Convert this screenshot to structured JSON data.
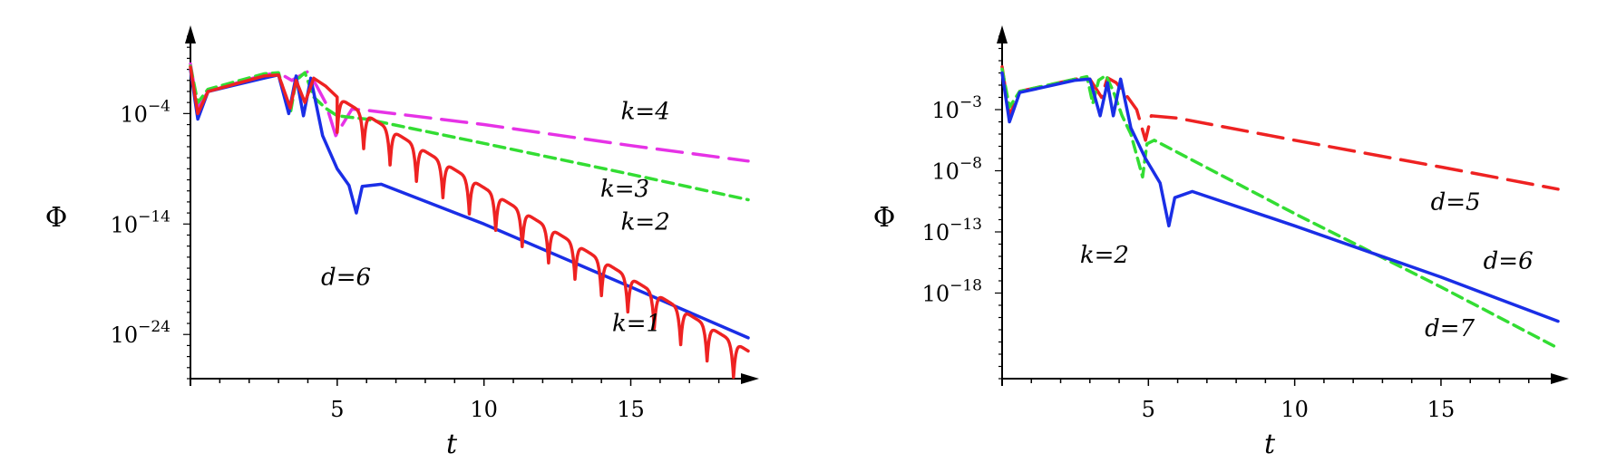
{
  "chart_data": [
    {
      "type": "line",
      "xlabel": "t",
      "ylabel": "Φ",
      "x_scale": "linear",
      "y_scale": "log",
      "xlim": [
        0,
        19
      ],
      "ylim_log10": [
        -28,
        3
      ],
      "xticks": [
        5,
        10,
        15
      ],
      "yticks": [
        {
          "exp": -4,
          "label": "10"
        },
        {
          "exp": -14,
          "label": "10"
        },
        {
          "exp": -24,
          "label": "10"
        }
      ],
      "ytick_exponents": [
        "−4",
        "−14",
        "−24"
      ],
      "annotations": [
        {
          "text": "k=4",
          "x": 15.5,
          "y_exp": -4.5
        },
        {
          "text": "k=3",
          "x": 14.8,
          "y_exp": -11.5
        },
        {
          "text": "k=2",
          "x": 15.5,
          "y_exp": -14.5
        },
        {
          "text": "d=6",
          "x": 5.3,
          "y_exp": -19.5
        },
        {
          "text": "k=1",
          "x": 15.2,
          "y_exp": -23.7
        }
      ],
      "series": [
        {
          "name": "k=4",
          "color": "#e632e6",
          "dash": "long",
          "x": [
            0,
            0.25,
            0.6,
            2.5,
            3.0,
            3.45,
            3.65,
            4.0,
            4.3,
            4.6,
            4.95,
            5.5,
            6,
            10,
            15,
            19
          ],
          "y_exp": [
            0.5,
            -3.5,
            -2.0,
            -0.5,
            -0.3,
            -1.0,
            -0.7,
            -0.2,
            -1.5,
            -3.0,
            -6.0,
            -3.6,
            -3.7,
            -5.0,
            -6.9,
            -8.3
          ]
        },
        {
          "name": "k=3",
          "color": "#33dd33",
          "dash": "short",
          "x": [
            0,
            0.25,
            0.6,
            2.5,
            3.0,
            3.4,
            3.6,
            3.9,
            4.2,
            4.6,
            5.0,
            6,
            10,
            15,
            19
          ],
          "y_exp": [
            0.3,
            -3.0,
            -1.8,
            -0.4,
            -0.3,
            -4.0,
            -1.0,
            -0.3,
            -2.5,
            -3.5,
            -4.2,
            -4.5,
            -6.7,
            -9.5,
            -11.8
          ]
        },
        {
          "name": "k=2",
          "color": "#1a2ee6",
          "dash": "solid",
          "x": [
            0,
            0.25,
            0.6,
            2.5,
            3.0,
            3.35,
            3.6,
            3.85,
            4.1,
            4.5,
            5.0,
            5.4,
            5.65,
            5.85,
            6.5,
            10,
            15,
            19
          ],
          "y_exp": [
            0,
            -4.5,
            -2.0,
            -0.8,
            -0.5,
            -4.0,
            -0.6,
            -4.2,
            -0.8,
            -6.0,
            -9.0,
            -10.5,
            -13.0,
            -10.6,
            -10.4,
            -14.0,
            -19.7,
            -24.3
          ]
        },
        {
          "name": "k=1",
          "color": "#ee2222",
          "dash": "solid",
          "envelope_y_exp": [
            -4.0,
            -27.0
          ],
          "x": [
            0,
            19
          ]
        }
      ]
    },
    {
      "type": "line",
      "xlabel": "t",
      "ylabel": "Φ",
      "x_scale": "linear",
      "y_scale": "log",
      "xlim": [
        0,
        19
      ],
      "ylim_log10": [
        -25,
        3
      ],
      "xticks": [
        5,
        10,
        15
      ],
      "yticks": [
        {
          "exp": -3,
          "label": "10"
        },
        {
          "exp": -8,
          "label": "10"
        },
        {
          "exp": -13,
          "label": "10"
        },
        {
          "exp": -18,
          "label": "10"
        }
      ],
      "ytick_exponents": [
        "−3",
        "−8",
        "−13",
        "−18"
      ],
      "annotations": [
        {
          "text": "d=5",
          "x": 15.5,
          "y_exp": -11.2
        },
        {
          "text": "k=2",
          "x": 3.5,
          "y_exp": -15.5
        },
        {
          "text": "d=6",
          "x": 17.3,
          "y_exp": -16.0
        },
        {
          "text": "d=7",
          "x": 15.3,
          "y_exp": -21.5
        }
      ],
      "series": [
        {
          "name": "d=5",
          "color": "#ee2222",
          "dash": "long",
          "x": [
            0,
            0.25,
            0.6,
            2.5,
            3.0,
            3.4,
            3.6,
            3.9,
            4.3,
            4.6,
            4.9,
            5.1,
            6,
            10,
            15,
            19
          ],
          "y_exp": [
            0.5,
            -3.5,
            -1.5,
            -0.5,
            -0.5,
            -2.0,
            -0.4,
            -0.8,
            -2.0,
            -3.0,
            -5.5,
            -3.5,
            -3.7,
            -5.5,
            -7.7,
            -9.5
          ]
        },
        {
          "name": "d=7",
          "color": "#33dd33",
          "dash": "short",
          "x": [
            0,
            0.25,
            0.6,
            2.5,
            2.9,
            3.1,
            3.3,
            3.55,
            3.8,
            4.1,
            4.4,
            4.8,
            4.95,
            5.2,
            6,
            10,
            15,
            19
          ],
          "y_exp": [
            0.3,
            -2.8,
            -1.5,
            -0.5,
            -0.3,
            -2.5,
            -0.6,
            -0.2,
            -1.5,
            -3.5,
            -5.0,
            -8.5,
            -5.8,
            -5.5,
            -6.5,
            -11.5,
            -17.5,
            -22.5
          ]
        },
        {
          "name": "d=6",
          "color": "#1a2ee6",
          "dash": "solid",
          "x": [
            0,
            0.25,
            0.6,
            2.5,
            3.0,
            3.35,
            3.6,
            3.8,
            4.05,
            4.4,
            4.9,
            5.4,
            5.7,
            5.9,
            6.5,
            10,
            15,
            19
          ],
          "y_exp": [
            0,
            -4.0,
            -1.6,
            -0.6,
            -0.5,
            -3.5,
            -0.8,
            -3.5,
            -0.5,
            -4.5,
            -7.0,
            -9.0,
            -12.5,
            -10.2,
            -9.7,
            -12.5,
            -16.7,
            -20.3
          ]
        }
      ]
    }
  ]
}
